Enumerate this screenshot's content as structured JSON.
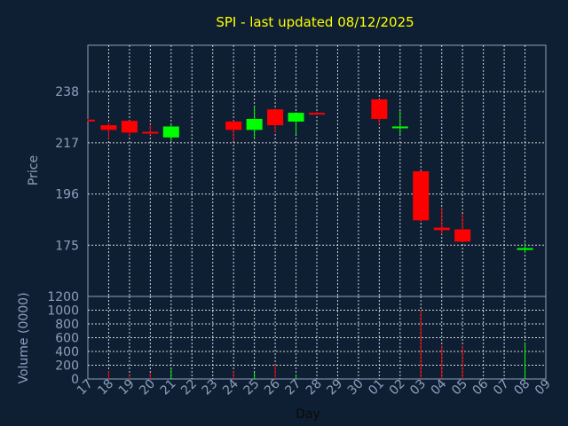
{
  "chart_data": {
    "type": "candlestick",
    "title": "SPI - last updated 08/12/2025",
    "xlabel": "Day",
    "x_ticks": [
      "17",
      "18",
      "19",
      "20",
      "21",
      "22",
      "23",
      "24",
      "25",
      "26",
      "27",
      "28",
      "29",
      "30",
      "01",
      "02",
      "03",
      "04",
      "05",
      "06",
      "07",
      "08",
      "09"
    ],
    "price": {
      "ylabel": "Price",
      "y_ticks": [
        175,
        196,
        217,
        238
      ],
      "ylim": [
        154,
        257
      ],
      "candles": [
        {
          "day": "17",
          "open": 226.5,
          "high": 226.8,
          "low": 225.8,
          "close": 225.8
        },
        {
          "day": "18",
          "open": 224.2,
          "high": 225.2,
          "low": 218.5,
          "close": 222.3
        },
        {
          "day": "19",
          "open": 226.0,
          "high": 226.2,
          "low": 219.5,
          "close": 221.2
        },
        {
          "day": "20",
          "open": 221.5,
          "high": 224.5,
          "low": 220.2,
          "close": 220.8
        },
        {
          "day": "21",
          "open": 219.2,
          "high": 224.5,
          "low": 217.8,
          "close": 223.7
        },
        {
          "day": "24",
          "open": 225.7,
          "high": 226.2,
          "low": 217.8,
          "close": 222.3
        },
        {
          "day": "25",
          "open": 222.3,
          "high": 231.8,
          "low": 218.5,
          "close": 226.8
        },
        {
          "day": "26",
          "open": 230.7,
          "high": 231.0,
          "low": 221.2,
          "close": 224.2
        },
        {
          "day": "27",
          "open": 225.7,
          "high": 229.6,
          "low": 220.5,
          "close": 229.3
        },
        {
          "day": "28",
          "open": 229.3,
          "high": 229.7,
          "low": 228.5,
          "close": 229.0
        },
        {
          "day": "01",
          "open": 234.8,
          "high": 234.9,
          "low": 224.5,
          "close": 226.8
        },
        {
          "day": "02",
          "open": 223.7,
          "high": 230.0,
          "low": 220.5,
          "close": 223.7
        },
        {
          "day": "03",
          "open": 205.3,
          "high": 205.5,
          "low": 184.5,
          "close": 185.2
        },
        {
          "day": "04",
          "open": 182.2,
          "high": 190.5,
          "low": 179.5,
          "close": 181.2
        },
        {
          "day": "05",
          "open": 181.5,
          "high": 187.8,
          "low": 176.2,
          "close": 176.5
        },
        {
          "day": "08",
          "open": 173.8,
          "high": 175.9,
          "low": 171.8,
          "close": 173.8
        }
      ]
    },
    "volume": {
      "ylabel": "Volume (0000)",
      "y_ticks": [
        0,
        200,
        400,
        600,
        800,
        1000,
        1200
      ],
      "ylim": [
        0,
        1200
      ],
      "bars": [
        {
          "day": "18",
          "value": 120,
          "color": "#ff0000"
        },
        {
          "day": "19",
          "value": 55,
          "color": "#ff0000"
        },
        {
          "day": "20",
          "value": 90,
          "color": "#ff0000"
        },
        {
          "day": "21",
          "value": 140,
          "color": "#00ff00"
        },
        {
          "day": "24",
          "value": 120,
          "color": "#ff0000"
        },
        {
          "day": "25",
          "value": 90,
          "color": "#00ff00"
        },
        {
          "day": "26",
          "value": 210,
          "color": "#ff0000"
        },
        {
          "day": "27",
          "value": 60,
          "color": "#00ff00"
        },
        {
          "day": "03",
          "value": 1000,
          "color": "#ff0000"
        },
        {
          "day": "04",
          "value": 480,
          "color": "#ff0000"
        },
        {
          "day": "05",
          "value": 480,
          "color": "#ff0000"
        },
        {
          "day": "08",
          "value": 520,
          "color": "#00ff00"
        }
      ]
    },
    "colors": {
      "background": "#0f1f33",
      "axis": "#8aa0bd",
      "grid": "#ffffff",
      "title": "#ffff00",
      "up": "#00ff00",
      "down": "#ff0000"
    },
    "grid": true
  }
}
